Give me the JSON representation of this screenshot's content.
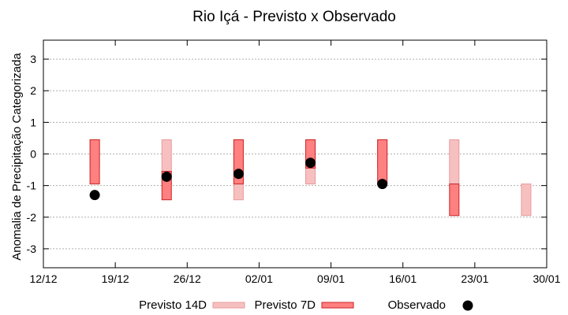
{
  "chart_data": {
    "type": "bar",
    "title": "Rio Içá - Previsto x Observado",
    "xlabel": "",
    "ylabel": "Anomalia de Precipitação Categorizada",
    "x_ticks": [
      "12/12",
      "19/12",
      "26/12",
      "02/01",
      "09/01",
      "16/01",
      "23/01",
      "30/01"
    ],
    "y_ticks": [
      -3,
      -2,
      -1,
      0,
      1,
      2,
      3
    ],
    "ylim": [
      -3.6,
      3.6
    ],
    "grid": true,
    "legend_position": "bottom",
    "weeks": [
      "17/12",
      "24/12",
      "31/12",
      "07/01",
      "14/01",
      "21/01",
      "28/01"
    ],
    "series": [
      {
        "name": "Previsto 14D",
        "color": "#f7c0c0",
        "ranges": [
          [
            -0.45,
            0.45
          ],
          [
            -0.95,
            0.45
          ],
          [
            -1.45,
            0.45
          ],
          [
            -0.95,
            0.45
          ],
          [
            -0.45,
            0.45
          ],
          [
            -0.95,
            0.45
          ],
          [
            -1.95,
            -0.95
          ]
        ]
      },
      {
        "name": "Previsto 7D",
        "color": "#ff8080",
        "ranges": [
          [
            -0.95,
            0.45
          ],
          [
            -1.45,
            -0.55
          ],
          [
            -0.95,
            0.45
          ],
          [
            -0.45,
            0.45
          ],
          [
            -0.95,
            0.45
          ],
          [
            -1.95,
            -0.95
          ],
          null
        ]
      },
      {
        "name": "Observado",
        "color": "#000000",
        "values": [
          -1.3,
          -0.72,
          -0.63,
          -0.28,
          -0.95,
          null,
          null
        ]
      }
    ]
  }
}
